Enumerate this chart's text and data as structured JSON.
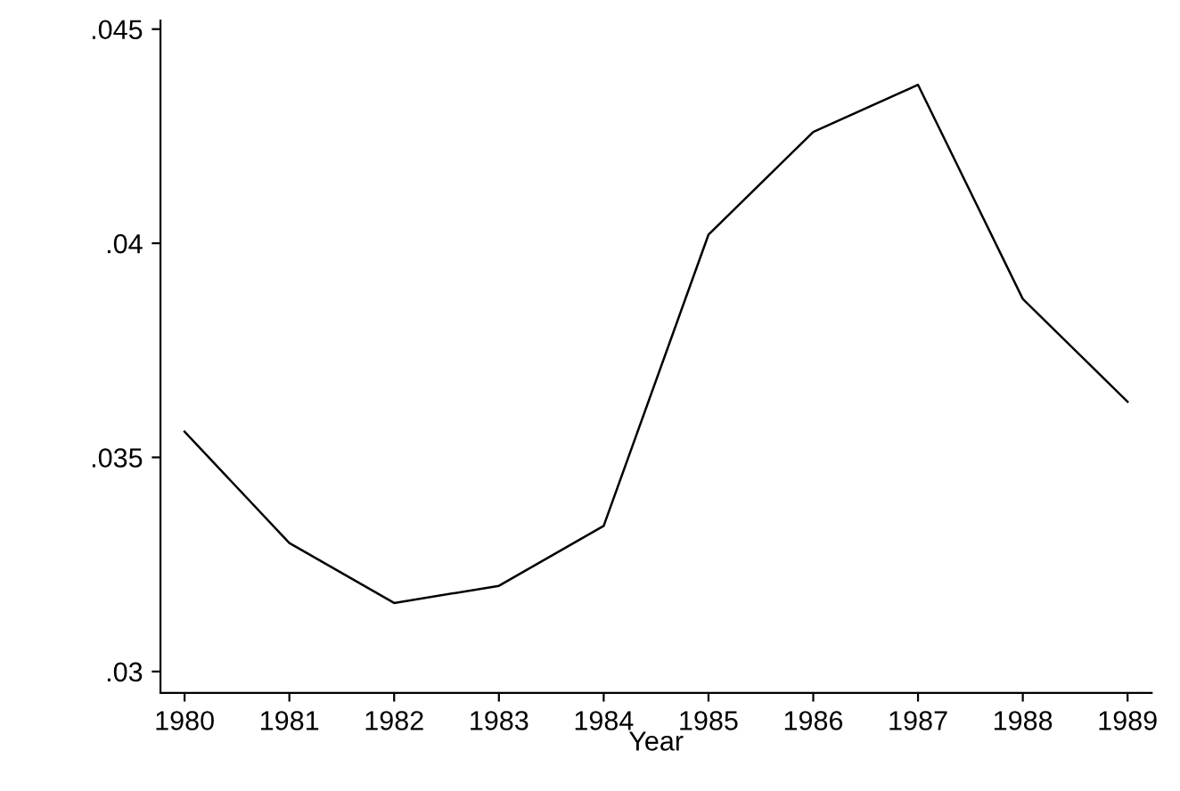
{
  "chart_data": {
    "type": "line",
    "xlabel": "Year",
    "x": [
      1980,
      1981,
      1982,
      1983,
      1984,
      1985,
      1986,
      1987,
      1988,
      1989
    ],
    "series": [
      {
        "color": "#000000",
        "values": [
          0.0356,
          0.033,
          0.0316,
          0.032,
          0.0334,
          0.0402,
          0.0426,
          0.0437,
          0.0387,
          0.0363
        ]
      }
    ],
    "xlim": [
      1979.77,
      1989.23
    ],
    "xticks": [
      1980,
      1981,
      1982,
      1983,
      1984,
      1985,
      1986,
      1987,
      1988,
      1989
    ],
    "ylim": [
      0.0295,
      0.0452
    ],
    "yticks": [
      {
        "value": 0.03,
        "label": ".03"
      },
      {
        "value": 0.035,
        "label": ".035"
      },
      {
        "value": 0.04,
        "label": ".04"
      },
      {
        "value": 0.045,
        "label": ".045"
      }
    ],
    "grid": false,
    "legend": false,
    "marker": "none",
    "line_style": "solid"
  }
}
